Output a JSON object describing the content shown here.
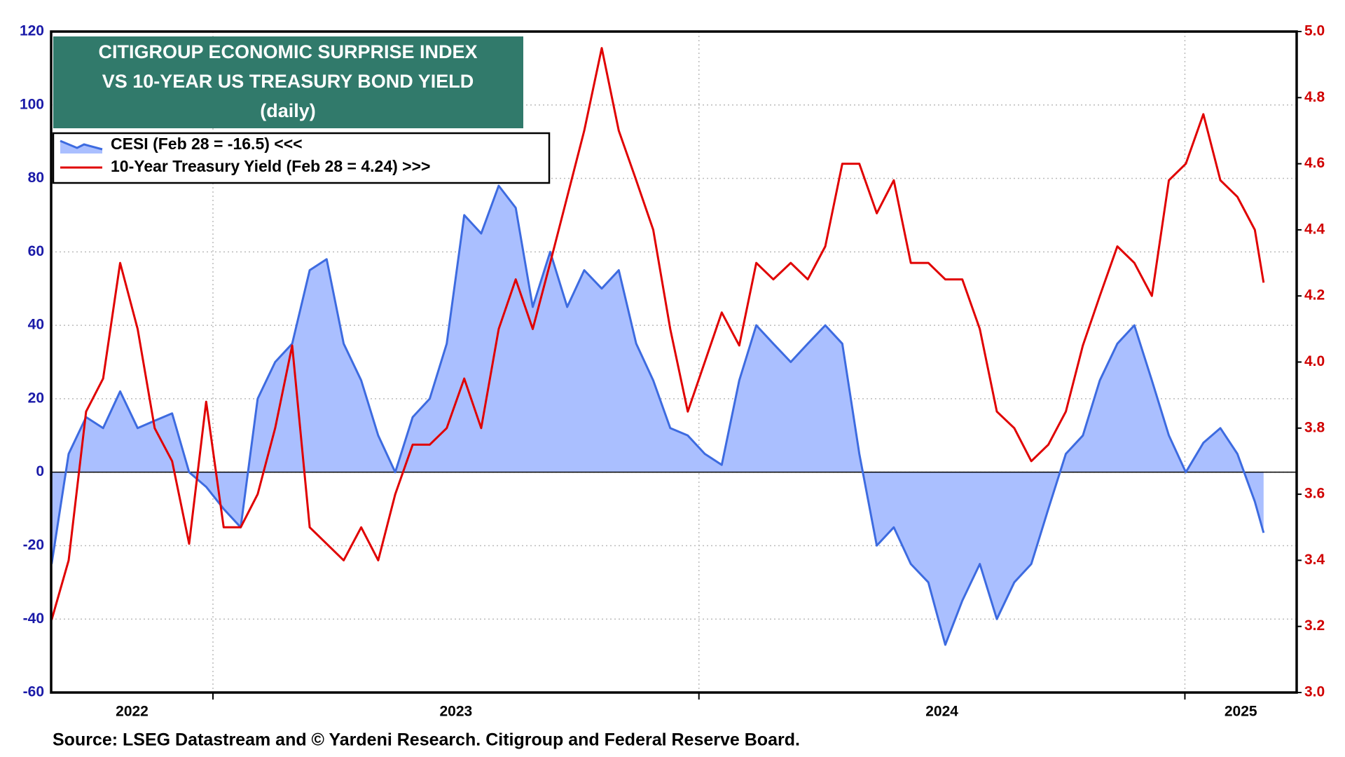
{
  "chart_data": {
    "type": "line",
    "title": [
      "CITIGROUP ECONOMIC SURPRISE INDEX",
      "VS 10-YEAR US TREASURY BOND YIELD"
    ],
    "subtitle": "(daily)",
    "source": "Source: LSEG Datastream and © Yardeni Research. Citigroup and Federal Reserve Board.",
    "x": [
      2022.668,
      2022.703,
      2022.739,
      2022.774,
      2022.809,
      2022.845,
      2022.88,
      2022.916,
      2022.951,
      2022.986,
      2023.022,
      2023.057,
      2023.092,
      2023.128,
      2023.163,
      2023.199,
      2023.234,
      2023.269,
      2023.305,
      2023.34,
      2023.375,
      2023.411,
      2023.446,
      2023.481,
      2023.517,
      2023.552,
      2023.588,
      2023.623,
      2023.658,
      2023.694,
      2023.729,
      2023.764,
      2023.8,
      2023.835,
      2023.871,
      2023.906,
      2023.941,
      2023.977,
      2024.012,
      2024.047,
      2024.083,
      2024.118,
      2024.153,
      2024.189,
      2024.224,
      2024.26,
      2024.295,
      2024.33,
      2024.366,
      2024.401,
      2024.436,
      2024.472,
      2024.507,
      2024.542,
      2024.578,
      2024.613,
      2024.649,
      2024.684,
      2024.719,
      2024.755,
      2024.79,
      2024.825,
      2024.861,
      2024.896,
      2024.932,
      2024.967,
      2025.002,
      2025.038,
      2025.073,
      2025.108,
      2025.144,
      2025.162
    ],
    "xlim": [
      2022.667,
      2025.23
    ],
    "xticks": [
      2023,
      2024,
      2025
    ],
    "year_labels": [
      2022,
      2023,
      2024,
      2025
    ],
    "series": [
      {
        "name": "CESI (Feb 28 = -16.5) <<<",
        "color": "#3d6be0",
        "fill": "#aabfff",
        "values": [
          -25,
          5,
          15,
          12,
          22,
          12,
          14,
          16,
          0,
          -4,
          -10,
          -15,
          20,
          30,
          35,
          55,
          58,
          35,
          25,
          10,
          0,
          15,
          20,
          35,
          70,
          65,
          78,
          72,
          45,
          60,
          45,
          55,
          50,
          55,
          35,
          25,
          12,
          10,
          5,
          2,
          25,
          40,
          35,
          30,
          35,
          40,
          35,
          5,
          -20,
          -15,
          -25,
          -30,
          -47,
          -35,
          -25,
          -40,
          -30,
          -25,
          -10,
          5,
          10,
          25,
          35,
          40,
          25,
          10,
          0,
          8,
          12,
          5,
          -8,
          -16.5
        ]
      },
      {
        "name": "10-Year Treasury Yield (Feb 28 = 4.24) >>>",
        "color": "#e00000",
        "axis": "y2",
        "values": [
          3.22,
          3.4,
          3.85,
          3.95,
          4.3,
          4.1,
          3.8,
          3.7,
          3.45,
          3.88,
          3.5,
          3.5,
          3.6,
          3.8,
          4.05,
          3.5,
          3.45,
          3.4,
          3.5,
          3.4,
          3.6,
          3.75,
          3.75,
          3.8,
          3.95,
          3.8,
          4.1,
          4.25,
          4.1,
          4.3,
          4.5,
          4.7,
          4.95,
          4.7,
          4.55,
          4.4,
          4.1,
          3.85,
          4.0,
          4.15,
          4.05,
          4.3,
          4.25,
          4.3,
          4.25,
          4.35,
          4.6,
          4.6,
          4.45,
          4.55,
          4.3,
          4.3,
          4.25,
          4.25,
          4.1,
          3.85,
          3.8,
          3.7,
          3.75,
          3.85,
          4.05,
          4.2,
          4.35,
          4.3,
          4.2,
          4.55,
          4.6,
          4.75,
          4.55,
          4.5,
          4.4,
          4.24
        ]
      }
    ],
    "ylim": [
      -60,
      120
    ],
    "yticks": [
      -60,
      -40,
      -20,
      0,
      20,
      40,
      60,
      80,
      100,
      120
    ],
    "y2lim": [
      3.0,
      5.0
    ],
    "y2ticks": [
      {
        "value": 3.0,
        "label": "3.0"
      },
      3.2,
      3.4,
      3.6,
      3.8,
      {
        "value": 4.0,
        "label": "4.0"
      },
      4.2,
      4.4,
      4.6,
      4.8,
      {
        "value": 5.0,
        "label": "5.0"
      }
    ],
    "grid": true,
    "zero_line": true
  }
}
